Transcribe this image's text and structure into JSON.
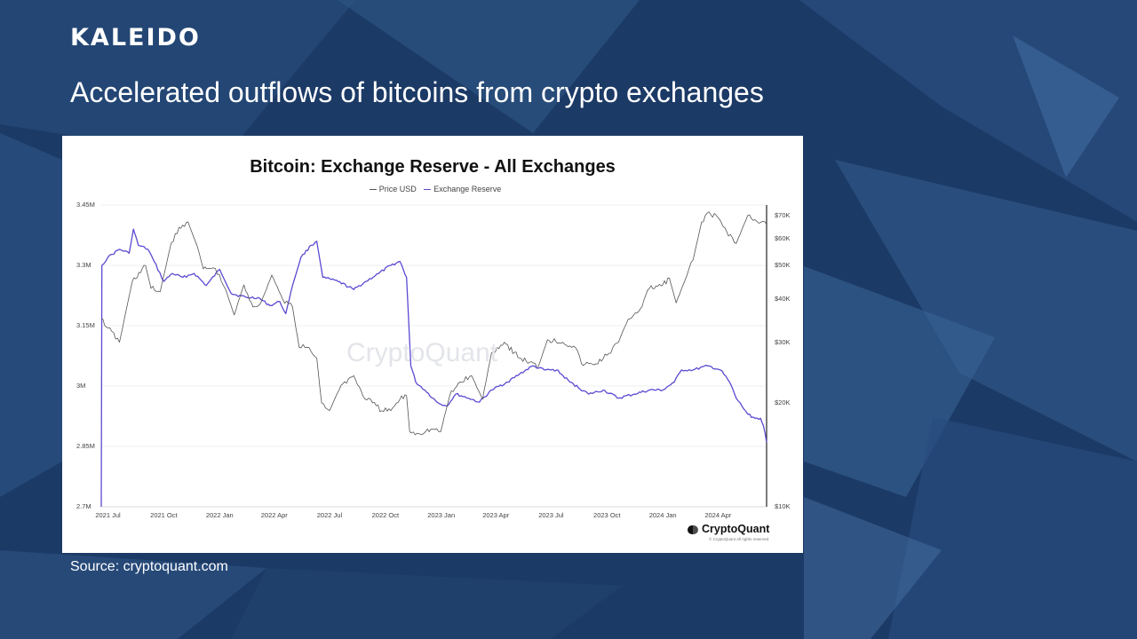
{
  "brand": "KALEIDO",
  "headline": "Accelerated outflows of bitcoins from crypto exchanges",
  "source": "Source: cryptoquant.com",
  "chart_data": {
    "type": "line",
    "title": "Bitcoin: Exchange Reserve - All Exchanges",
    "legend": [
      "Price USD",
      "Exchange Reserve"
    ],
    "legend_position": "top-center",
    "x_ticks": [
      "2021 Jul",
      "2021 Oct",
      "2022 Jan",
      "2022 Apr",
      "2022 Jul",
      "2022 Oct",
      "2023 Jan",
      "2023 Apr",
      "2023 Jul",
      "2023 Oct",
      "2024 Jan",
      "2024 Apr"
    ],
    "x_range": [
      "2021-06-20",
      "2024-06-20"
    ],
    "y_left": {
      "ticks": [
        "3.45M",
        "3.3M",
        "3.15M",
        "3M",
        "2.85M",
        "2.7M"
      ],
      "range": [
        2700000,
        3450000
      ]
    },
    "y_right": {
      "ticks": [
        "$70K",
        "$60K",
        "$50K",
        "$40K",
        "$30K",
        "$20K",
        "$10K"
      ],
      "range": [
        10000,
        75000
      ],
      "scale": "log"
    },
    "grid": "horizontal",
    "watermark": "CryptoQuant",
    "series": [
      {
        "name": "Exchange Reserve",
        "color": "#5a4ad1",
        "axis": "left",
        "x": [
          "2021-06-20",
          "2021-06-21",
          "2021-07-01",
          "2021-07-20",
          "2021-08-05",
          "2021-08-12",
          "2021-08-20",
          "2021-09-05",
          "2021-09-15",
          "2021-10-01",
          "2021-10-15",
          "2021-11-01",
          "2021-11-20",
          "2021-12-10",
          "2022-01-01",
          "2022-01-20",
          "2022-02-15",
          "2022-03-05",
          "2022-03-25",
          "2022-04-10",
          "2022-04-20",
          "2022-05-01",
          "2022-05-15",
          "2022-06-01",
          "2022-06-10",
          "2022-06-20",
          "2022-07-15",
          "2022-08-10",
          "2022-08-30",
          "2022-09-20",
          "2022-10-10",
          "2022-10-25",
          "2022-11-05",
          "2022-11-12",
          "2022-11-20",
          "2022-12-05",
          "2022-12-25",
          "2023-01-10",
          "2023-01-25",
          "2023-02-15",
          "2023-03-05",
          "2023-03-25",
          "2023-04-20",
          "2023-05-10",
          "2023-06-01",
          "2023-06-20",
          "2023-07-10",
          "2023-08-01",
          "2023-09-01",
          "2023-09-25",
          "2023-10-20",
          "2023-11-15",
          "2023-12-10",
          "2024-01-01",
          "2024-01-20",
          "2024-02-01",
          "2024-02-20",
          "2024-03-15",
          "2024-04-05",
          "2024-04-20",
          "2024-05-01",
          "2024-05-20",
          "2024-06-01",
          "2024-06-10",
          "2024-06-15",
          "2024-06-20"
        ],
        "values": [
          2700000,
          3300000,
          3320000,
          3340000,
          3330000,
          3390000,
          3350000,
          3340000,
          3310000,
          3260000,
          3280000,
          3270000,
          3280000,
          3250000,
          3290000,
          3230000,
          3220000,
          3220000,
          3200000,
          3210000,
          3180000,
          3250000,
          3320000,
          3350000,
          3360000,
          3270000,
          3260000,
          3240000,
          3260000,
          3280000,
          3300000,
          3310000,
          3270000,
          3050000,
          3010000,
          2990000,
          2960000,
          2950000,
          2980000,
          2970000,
          2960000,
          2990000,
          3010000,
          3030000,
          3050000,
          3040000,
          3040000,
          3010000,
          2980000,
          2990000,
          2970000,
          2980000,
          2990000,
          2990000,
          3010000,
          3040000,
          3040000,
          3050000,
          3040000,
          3010000,
          2970000,
          2930000,
          2920000,
          2920000,
          2900000,
          2860000
        ]
      },
      {
        "name": "Price USD",
        "color": "#555555",
        "axis": "right",
        "x": [
          "2021-06-20",
          "2021-07-01",
          "2021-07-20",
          "2021-08-10",
          "2021-09-01",
          "2021-09-10",
          "2021-09-25",
          "2021-10-10",
          "2021-10-20",
          "2021-11-10",
          "2021-11-25",
          "2021-12-05",
          "2021-12-25",
          "2022-01-10",
          "2022-01-25",
          "2022-02-10",
          "2022-02-25",
          "2022-03-10",
          "2022-03-28",
          "2022-04-15",
          "2022-05-01",
          "2022-05-12",
          "2022-05-25",
          "2022-06-10",
          "2022-06-18",
          "2022-07-01",
          "2022-07-20",
          "2022-08-10",
          "2022-08-25",
          "2022-09-10",
          "2022-09-25",
          "2022-10-10",
          "2022-10-25",
          "2022-11-05",
          "2022-11-10",
          "2022-11-25",
          "2022-12-15",
          "2022-12-31",
          "2023-01-15",
          "2023-02-01",
          "2023-02-20",
          "2023-03-10",
          "2023-03-25",
          "2023-04-15",
          "2023-05-10",
          "2023-06-10",
          "2023-06-25",
          "2023-07-20",
          "2023-08-10",
          "2023-08-20",
          "2023-09-10",
          "2023-10-01",
          "2023-10-20",
          "2023-11-05",
          "2023-11-25",
          "2023-12-10",
          "2024-01-01",
          "2024-01-12",
          "2024-01-23",
          "2024-02-10",
          "2024-02-20",
          "2024-03-05",
          "2024-03-14",
          "2024-04-01",
          "2024-04-15",
          "2024-05-01",
          "2024-05-20",
          "2024-06-01",
          "2024-06-20"
        ],
        "values": [
          35000,
          33000,
          30000,
          45000,
          50000,
          43000,
          42000,
          55000,
          62000,
          67000,
          57000,
          49000,
          49000,
          43000,
          36000,
          44000,
          38000,
          39000,
          47000,
          40000,
          38000,
          29000,
          29000,
          27000,
          20000,
          19000,
          22500,
          24000,
          21000,
          20000,
          19000,
          19000,
          20500,
          21000,
          16500,
          16300,
          16800,
          16500,
          21000,
          23000,
          24000,
          20500,
          28000,
          30000,
          27000,
          25500,
          30500,
          30000,
          29000,
          26000,
          25800,
          27500,
          30000,
          35000,
          37500,
          43000,
          44000,
          46000,
          39000,
          47000,
          52000,
          67000,
          71000,
          69000,
          63000,
          58000,
          70000,
          68000,
          66000
        ]
      }
    ]
  },
  "logo_text": "CryptoQuant",
  "copyright": "© CryptoQuant All rights reserved."
}
